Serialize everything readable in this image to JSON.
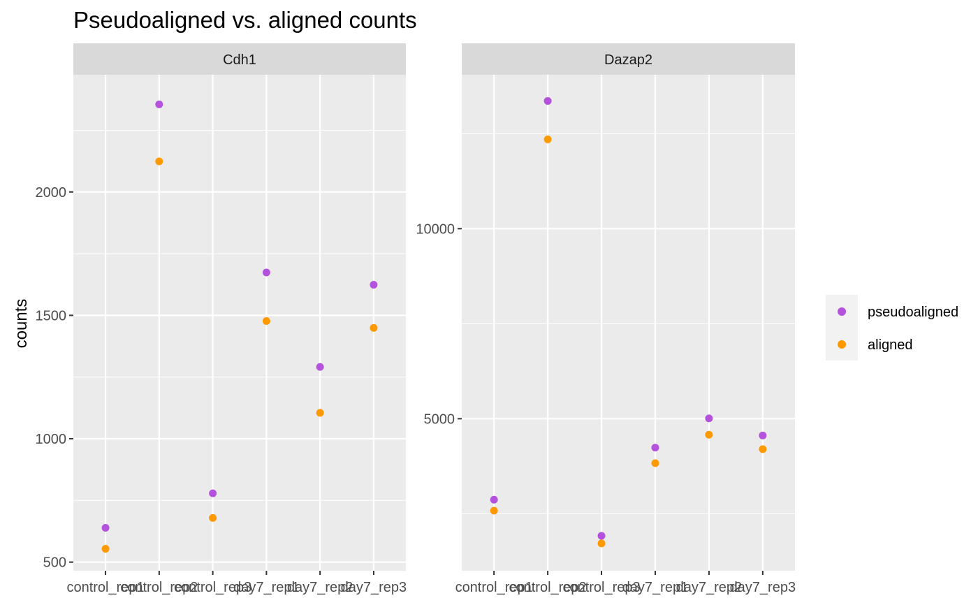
{
  "title": "Pseudoaligned vs. aligned counts",
  "ylabel": "counts",
  "colors": {
    "panel_bg": "#EBEBEB",
    "strip_bg": "#D9D9D9",
    "grid": "#FFFFFF",
    "pseudoaligned": "#B452DE",
    "aligned": "#FF9900",
    "legend_bg": "#F2F2F2"
  },
  "legend": {
    "position": "right",
    "items": [
      {
        "label": "pseudoaligned",
        "color": "#B452DE"
      },
      {
        "label": "aligned",
        "color": "#FF9900"
      }
    ]
  },
  "chart_data": {
    "type": "scatter",
    "categories": [
      "control_rep1",
      "control_rep2",
      "control_rep3",
      "day7_rep1",
      "day7_rep2",
      "day7_rep3"
    ],
    "panels": [
      {
        "facet": "Cdh1",
        "ylim": [
          465,
          2475
        ],
        "yticks": [
          500,
          1000,
          1500,
          2000
        ],
        "series": [
          {
            "name": "pseudoaligned",
            "values": [
              639,
              2355,
              779,
              1674,
              1291,
              1624
            ]
          },
          {
            "name": "aligned",
            "values": [
              554,
              2124,
              679,
              1477,
              1105,
              1449
            ]
          }
        ]
      },
      {
        "facet": "Dazap2",
        "ylim": [
          1000,
          14050
        ],
        "yticks": [
          5000,
          10000
        ],
        "series": [
          {
            "name": "pseudoaligned",
            "values": [
              2870,
              13360,
              1920,
              4240,
              5010,
              4560
            ]
          },
          {
            "name": "aligned",
            "values": [
              2580,
              12350,
              1720,
              3830,
              4580,
              4200
            ]
          }
        ]
      }
    ],
    "grid": true
  }
}
